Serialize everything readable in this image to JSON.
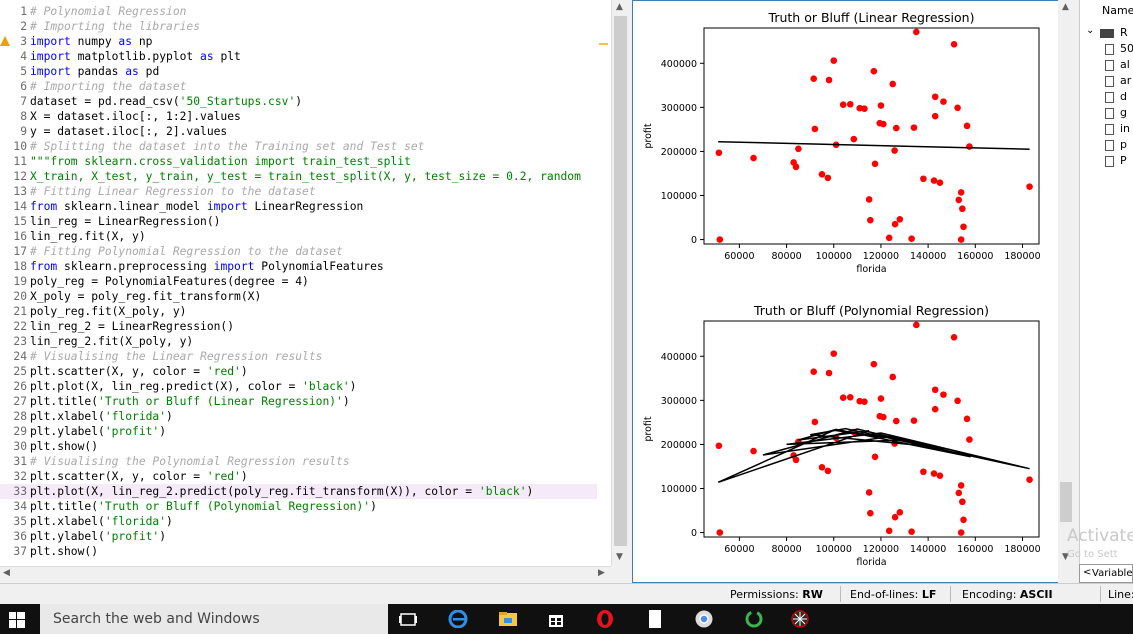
{
  "editor": {
    "lines": [
      {
        "n": "1",
        "parts": [
          [
            "c",
            "# Polynomial Regression"
          ]
        ]
      },
      {
        "n": "2",
        "parts": [
          [
            "c",
            "# Importing the libraries"
          ]
        ]
      },
      {
        "n": "3",
        "parts": [
          [
            "k",
            "import"
          ],
          [
            "t",
            " numpy "
          ],
          [
            "k",
            "as"
          ],
          [
            "t",
            " np"
          ]
        ]
      },
      {
        "n": "4",
        "parts": [
          [
            "k",
            "import"
          ],
          [
            "t",
            " matplotlib.pyplot "
          ],
          [
            "k",
            "as"
          ],
          [
            "t",
            " plt"
          ]
        ]
      },
      {
        "n": "5",
        "parts": [
          [
            "k",
            "import"
          ],
          [
            "t",
            " pandas "
          ],
          [
            "k",
            "as"
          ],
          [
            "t",
            " pd"
          ]
        ]
      },
      {
        "n": "6",
        "parts": [
          [
            "c",
            "# Importing the dataset"
          ]
        ]
      },
      {
        "n": "7",
        "parts": [
          [
            "t",
            "dataset = pd.read_csv("
          ],
          [
            "s",
            "'50_Startups.csv'"
          ],
          [
            "t",
            ")"
          ]
        ]
      },
      {
        "n": "8",
        "parts": [
          [
            "t",
            "X = dataset.iloc[:, 1:2].values"
          ]
        ]
      },
      {
        "n": "9",
        "parts": [
          [
            "t",
            "y = dataset.iloc[:, 2].values"
          ]
        ]
      },
      {
        "n": "10",
        "parts": [
          [
            "c",
            "# Splitting the dataset into the Training set and Test set"
          ]
        ]
      },
      {
        "n": "11",
        "parts": [
          [
            "s",
            "\"\"\"from sklearn.cross_validation import train_test_split"
          ]
        ]
      },
      {
        "n": "12",
        "parts": [
          [
            "s",
            "X_train, X_test, y_train, y_test = train_test_split(X, y, test_size = 0.2, random"
          ]
        ]
      },
      {
        "n": "13",
        "parts": [
          [
            "c",
            "# Fitting Linear Regression to the dataset"
          ]
        ]
      },
      {
        "n": "14",
        "parts": [
          [
            "k",
            "from"
          ],
          [
            "t",
            " sklearn.linear_model "
          ],
          [
            "k",
            "import"
          ],
          [
            "t",
            " LinearRegression"
          ]
        ]
      },
      {
        "n": "15",
        "parts": [
          [
            "t",
            "lin_reg = LinearRegression()"
          ]
        ]
      },
      {
        "n": "16",
        "parts": [
          [
            "t",
            "lin_reg.fit(X, y)"
          ]
        ]
      },
      {
        "n": "17",
        "parts": [
          [
            "c",
            "# Fitting Polynomial Regression to the dataset"
          ]
        ]
      },
      {
        "n": "18",
        "parts": [
          [
            "k",
            "from"
          ],
          [
            "t",
            " sklearn.preprocessing "
          ],
          [
            "k",
            "import"
          ],
          [
            "t",
            " PolynomialFeatures"
          ]
        ]
      },
      {
        "n": "19",
        "parts": [
          [
            "t",
            "poly_reg = PolynomialFeatures(degree = 4)"
          ]
        ]
      },
      {
        "n": "20",
        "parts": [
          [
            "t",
            "X_poly = poly_reg.fit_transform(X)"
          ]
        ]
      },
      {
        "n": "21",
        "parts": [
          [
            "t",
            "poly_reg.fit(X_poly, y)"
          ]
        ]
      },
      {
        "n": "22",
        "parts": [
          [
            "t",
            "lin_reg_2 = LinearRegression()"
          ]
        ]
      },
      {
        "n": "23",
        "parts": [
          [
            "t",
            "lin_reg_2.fit(X_poly, y)"
          ]
        ]
      },
      {
        "n": "24",
        "parts": [
          [
            "c",
            "# Visualising the Linear Regression results"
          ]
        ]
      },
      {
        "n": "25",
        "parts": [
          [
            "t",
            "plt.scatter(X, y, color = "
          ],
          [
            "s",
            "'red'"
          ],
          [
            "t",
            ")"
          ]
        ]
      },
      {
        "n": "26",
        "parts": [
          [
            "t",
            "plt.plot(X, lin_reg.predict(X), color = "
          ],
          [
            "s",
            "'black'"
          ],
          [
            "t",
            ")"
          ]
        ]
      },
      {
        "n": "27",
        "parts": [
          [
            "t",
            "plt.title("
          ],
          [
            "s",
            "'Truth or Bluff (Linear Regression)'"
          ],
          [
            "t",
            ")"
          ]
        ]
      },
      {
        "n": "28",
        "parts": [
          [
            "t",
            "plt.xlabel("
          ],
          [
            "s",
            "'florida'"
          ],
          [
            "t",
            ")"
          ]
        ]
      },
      {
        "n": "29",
        "parts": [
          [
            "t",
            "plt.ylabel("
          ],
          [
            "s",
            "'profit'"
          ],
          [
            "t",
            ")"
          ]
        ]
      },
      {
        "n": "30",
        "parts": [
          [
            "t",
            "plt.show()"
          ]
        ]
      },
      {
        "n": "31",
        "parts": [
          [
            "c",
            "# Visualising the Polynomial Regression results"
          ]
        ]
      },
      {
        "n": "32",
        "parts": [
          [
            "t",
            "plt.scatter(X, y, color = "
          ],
          [
            "s",
            "'red'"
          ],
          [
            "t",
            ")"
          ]
        ]
      },
      {
        "n": "33",
        "parts": [
          [
            "t",
            "plt.plot(X, lin_reg_2.predict(poly_reg.fit_transform(X)), color = "
          ],
          [
            "s",
            "'black'"
          ],
          [
            "t",
            ")"
          ]
        ],
        "active": true
      },
      {
        "n": "34",
        "parts": [
          [
            "t",
            "plt.title("
          ],
          [
            "s",
            "'Truth or Bluff (Polynomial Regression)'"
          ],
          [
            "t",
            ")"
          ]
        ]
      },
      {
        "n": "35",
        "parts": [
          [
            "t",
            "plt.xlabel("
          ],
          [
            "s",
            "'florida'"
          ],
          [
            "t",
            ")"
          ]
        ]
      },
      {
        "n": "36",
        "parts": [
          [
            "t",
            "plt.ylabel("
          ],
          [
            "s",
            "'profit'"
          ],
          [
            "t",
            ")"
          ]
        ]
      },
      {
        "n": "37",
        "parts": [
          [
            "t",
            "plt.show()"
          ]
        ]
      }
    ]
  },
  "chart_data": [
    {
      "type": "scatter",
      "title": "Truth or Bluff (Linear Regression)",
      "xlabel": "florida",
      "ylabel": "profit",
      "xlim": [
        45000,
        187000
      ],
      "ylim": [
        -10000,
        480000
      ],
      "xticks": [
        60000,
        80000,
        100000,
        120000,
        140000,
        160000,
        180000
      ],
      "yticks": [
        0,
        100000,
        200000,
        300000,
        400000
      ],
      "point_color": "#ff0000",
      "line_color": "#000000",
      "points": [
        [
          51700,
          0
        ],
        [
          51300,
          197000
        ],
        [
          66000,
          185000
        ],
        [
          83000,
          175000
        ],
        [
          84000,
          165000
        ],
        [
          85000,
          206000
        ],
        [
          91500,
          365000
        ],
        [
          92000,
          251000
        ],
        [
          95000,
          148000
        ],
        [
          97500,
          140000
        ],
        [
          98000,
          362000
        ],
        [
          100000,
          406000
        ],
        [
          101000,
          215000
        ],
        [
          104000,
          306000
        ],
        [
          107000,
          307000
        ],
        [
          108500,
          228000
        ],
        [
          111000,
          298000
        ],
        [
          113000,
          297000
        ],
        [
          115000,
          91000
        ],
        [
          115500,
          44000
        ],
        [
          117000,
          382000
        ],
        [
          117500,
          172000
        ],
        [
          119500,
          264000
        ],
        [
          120000,
          304000
        ],
        [
          121000,
          262000
        ],
        [
          123500,
          4000
        ],
        [
          125000,
          353000
        ],
        [
          125800,
          202000
        ],
        [
          126000,
          35000
        ],
        [
          126500,
          253000
        ],
        [
          128000,
          46000
        ],
        [
          133000,
          2000
        ],
        [
          134000,
          254000
        ],
        [
          135000,
          471000
        ],
        [
          138000,
          138000
        ],
        [
          142500,
          134000
        ],
        [
          143000,
          324000
        ],
        [
          143000,
          280000
        ],
        [
          145000,
          129000
        ],
        [
          146500,
          313000
        ],
        [
          151000,
          443000
        ],
        [
          152500,
          299000
        ],
        [
          153000,
          90000
        ],
        [
          154000,
          107000
        ],
        [
          154000,
          0
        ],
        [
          154500,
          70000
        ],
        [
          155000,
          29000
        ],
        [
          156500,
          258000
        ],
        [
          157500,
          211000
        ],
        [
          183000,
          120000
        ]
      ],
      "fit_line": [
        [
          51000,
          222000
        ],
        [
          183000,
          205000
        ]
      ]
    },
    {
      "type": "scatter",
      "title": "Truth or Bluff (Polynomial Regression)",
      "xlabel": "florida",
      "ylabel": "profit",
      "xlim": [
        45000,
        187000
      ],
      "ylim": [
        -10000,
        480000
      ],
      "xticks": [
        60000,
        80000,
        100000,
        120000,
        140000,
        160000,
        180000
      ],
      "yticks": [
        0,
        100000,
        200000,
        300000,
        400000
      ],
      "point_color": "#ff0000",
      "line_color": "#000000",
      "points": [
        [
          51700,
          0
        ],
        [
          51300,
          197000
        ],
        [
          66000,
          185000
        ],
        [
          83000,
          175000
        ],
        [
          84000,
          165000
        ],
        [
          85000,
          206000
        ],
        [
          91500,
          365000
        ],
        [
          92000,
          251000
        ],
        [
          95000,
          148000
        ],
        [
          97500,
          140000
        ],
        [
          98000,
          362000
        ],
        [
          100000,
          406000
        ],
        [
          101000,
          215000
        ],
        [
          104000,
          306000
        ],
        [
          107000,
          307000
        ],
        [
          108500,
          228000
        ],
        [
          111000,
          298000
        ],
        [
          113000,
          297000
        ],
        [
          115000,
          91000
        ],
        [
          115500,
          44000
        ],
        [
          117000,
          382000
        ],
        [
          117500,
          172000
        ],
        [
          119500,
          264000
        ],
        [
          120000,
          304000
        ],
        [
          121000,
          262000
        ],
        [
          123500,
          4000
        ],
        [
          125000,
          353000
        ],
        [
          125800,
          202000
        ],
        [
          126000,
          35000
        ],
        [
          126500,
          253000
        ],
        [
          128000,
          46000
        ],
        [
          133000,
          2000
        ],
        [
          134000,
          254000
        ],
        [
          135000,
          471000
        ],
        [
          138000,
          138000
        ],
        [
          142500,
          134000
        ],
        [
          143000,
          324000
        ],
        [
          143000,
          280000
        ],
        [
          145000,
          129000
        ],
        [
          146500,
          313000
        ],
        [
          151000,
          443000
        ],
        [
          152500,
          299000
        ],
        [
          153000,
          90000
        ],
        [
          154000,
          107000
        ],
        [
          154000,
          0
        ],
        [
          154500,
          70000
        ],
        [
          155000,
          29000
        ],
        [
          156500,
          258000
        ],
        [
          157500,
          211000
        ],
        [
          183000,
          120000
        ]
      ],
      "fit_line": [
        [
          51000,
          114000
        ],
        [
          100000,
          232000
        ],
        [
          130000,
          210000
        ],
        [
          80000,
          200000
        ],
        [
          120000,
          226000
        ],
        [
          183000,
          145000
        ],
        [
          105000,
          236000
        ],
        [
          90000,
          222000
        ],
        [
          140000,
          196000
        ],
        [
          110000,
          235000
        ],
        [
          70000,
          176000
        ],
        [
          125000,
          219000
        ],
        [
          158000,
          172000
        ],
        [
          101000,
          234000
        ],
        [
          85000,
          210000
        ],
        [
          115000,
          231000
        ],
        [
          51000,
          114000
        ]
      ]
    }
  ],
  "explorer": {
    "header": "Name",
    "folder_label": "R",
    "files": [
      "50",
      "al",
      "ar",
      "d",
      "g",
      "in",
      "p",
      "P"
    ]
  },
  "statusbar": {
    "permissions_label": "Permissions:",
    "permissions_value": "RW",
    "eol_label": "End-of-lines:",
    "eol_value": "LF",
    "encoding_label": "Encoding:",
    "encoding_value": "ASCII",
    "line_label": "Line:"
  },
  "variable_tab": "Variable",
  "watermark": "Activate",
  "watermark2": "Go to Sett",
  "taskbar": {
    "search_placeholder": "Search the web and Windows"
  }
}
